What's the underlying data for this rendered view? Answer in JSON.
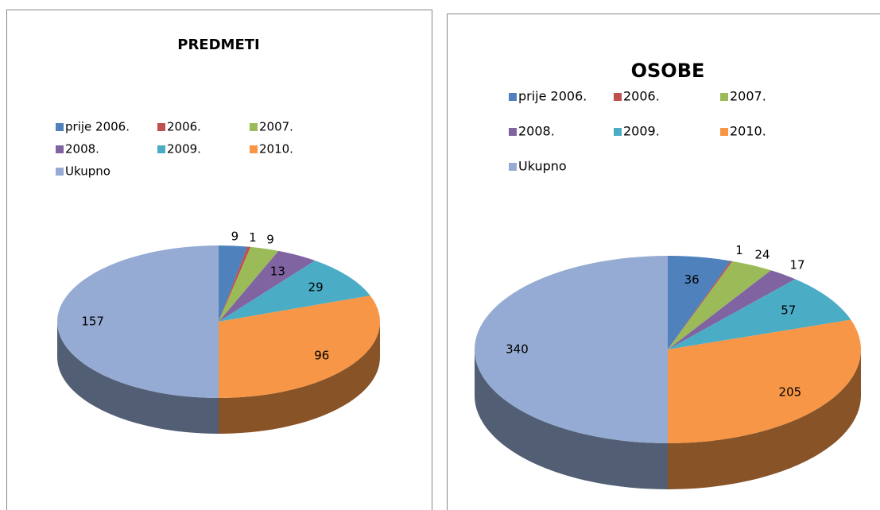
{
  "chart_data": [
    {
      "type": "pie",
      "title": "PREDMETI",
      "categories": [
        "prije 2006.",
        "2006.",
        "2007.",
        "2008.",
        "2009.",
        "2010.",
        "Ukupno"
      ],
      "values": [
        9,
        1,
        9,
        13,
        29,
        96,
        157
      ],
      "colors": [
        "#4f81bd",
        "#c0504d",
        "#9bbb59",
        "#8064a2",
        "#4bacc6",
        "#f79646",
        "#95abd3"
      ]
    },
    {
      "type": "pie",
      "title": "OSOBE",
      "categories": [
        "prije 2006.",
        "2006.",
        "2007.",
        "2008.",
        "2009.",
        "2010.",
        "Ukupno"
      ],
      "values": [
        36,
        1,
        24,
        17,
        57,
        205,
        340
      ],
      "colors": [
        "#4f81bd",
        "#c0504d",
        "#9bbb59",
        "#8064a2",
        "#4bacc6",
        "#f79646",
        "#95abd3"
      ]
    }
  ]
}
